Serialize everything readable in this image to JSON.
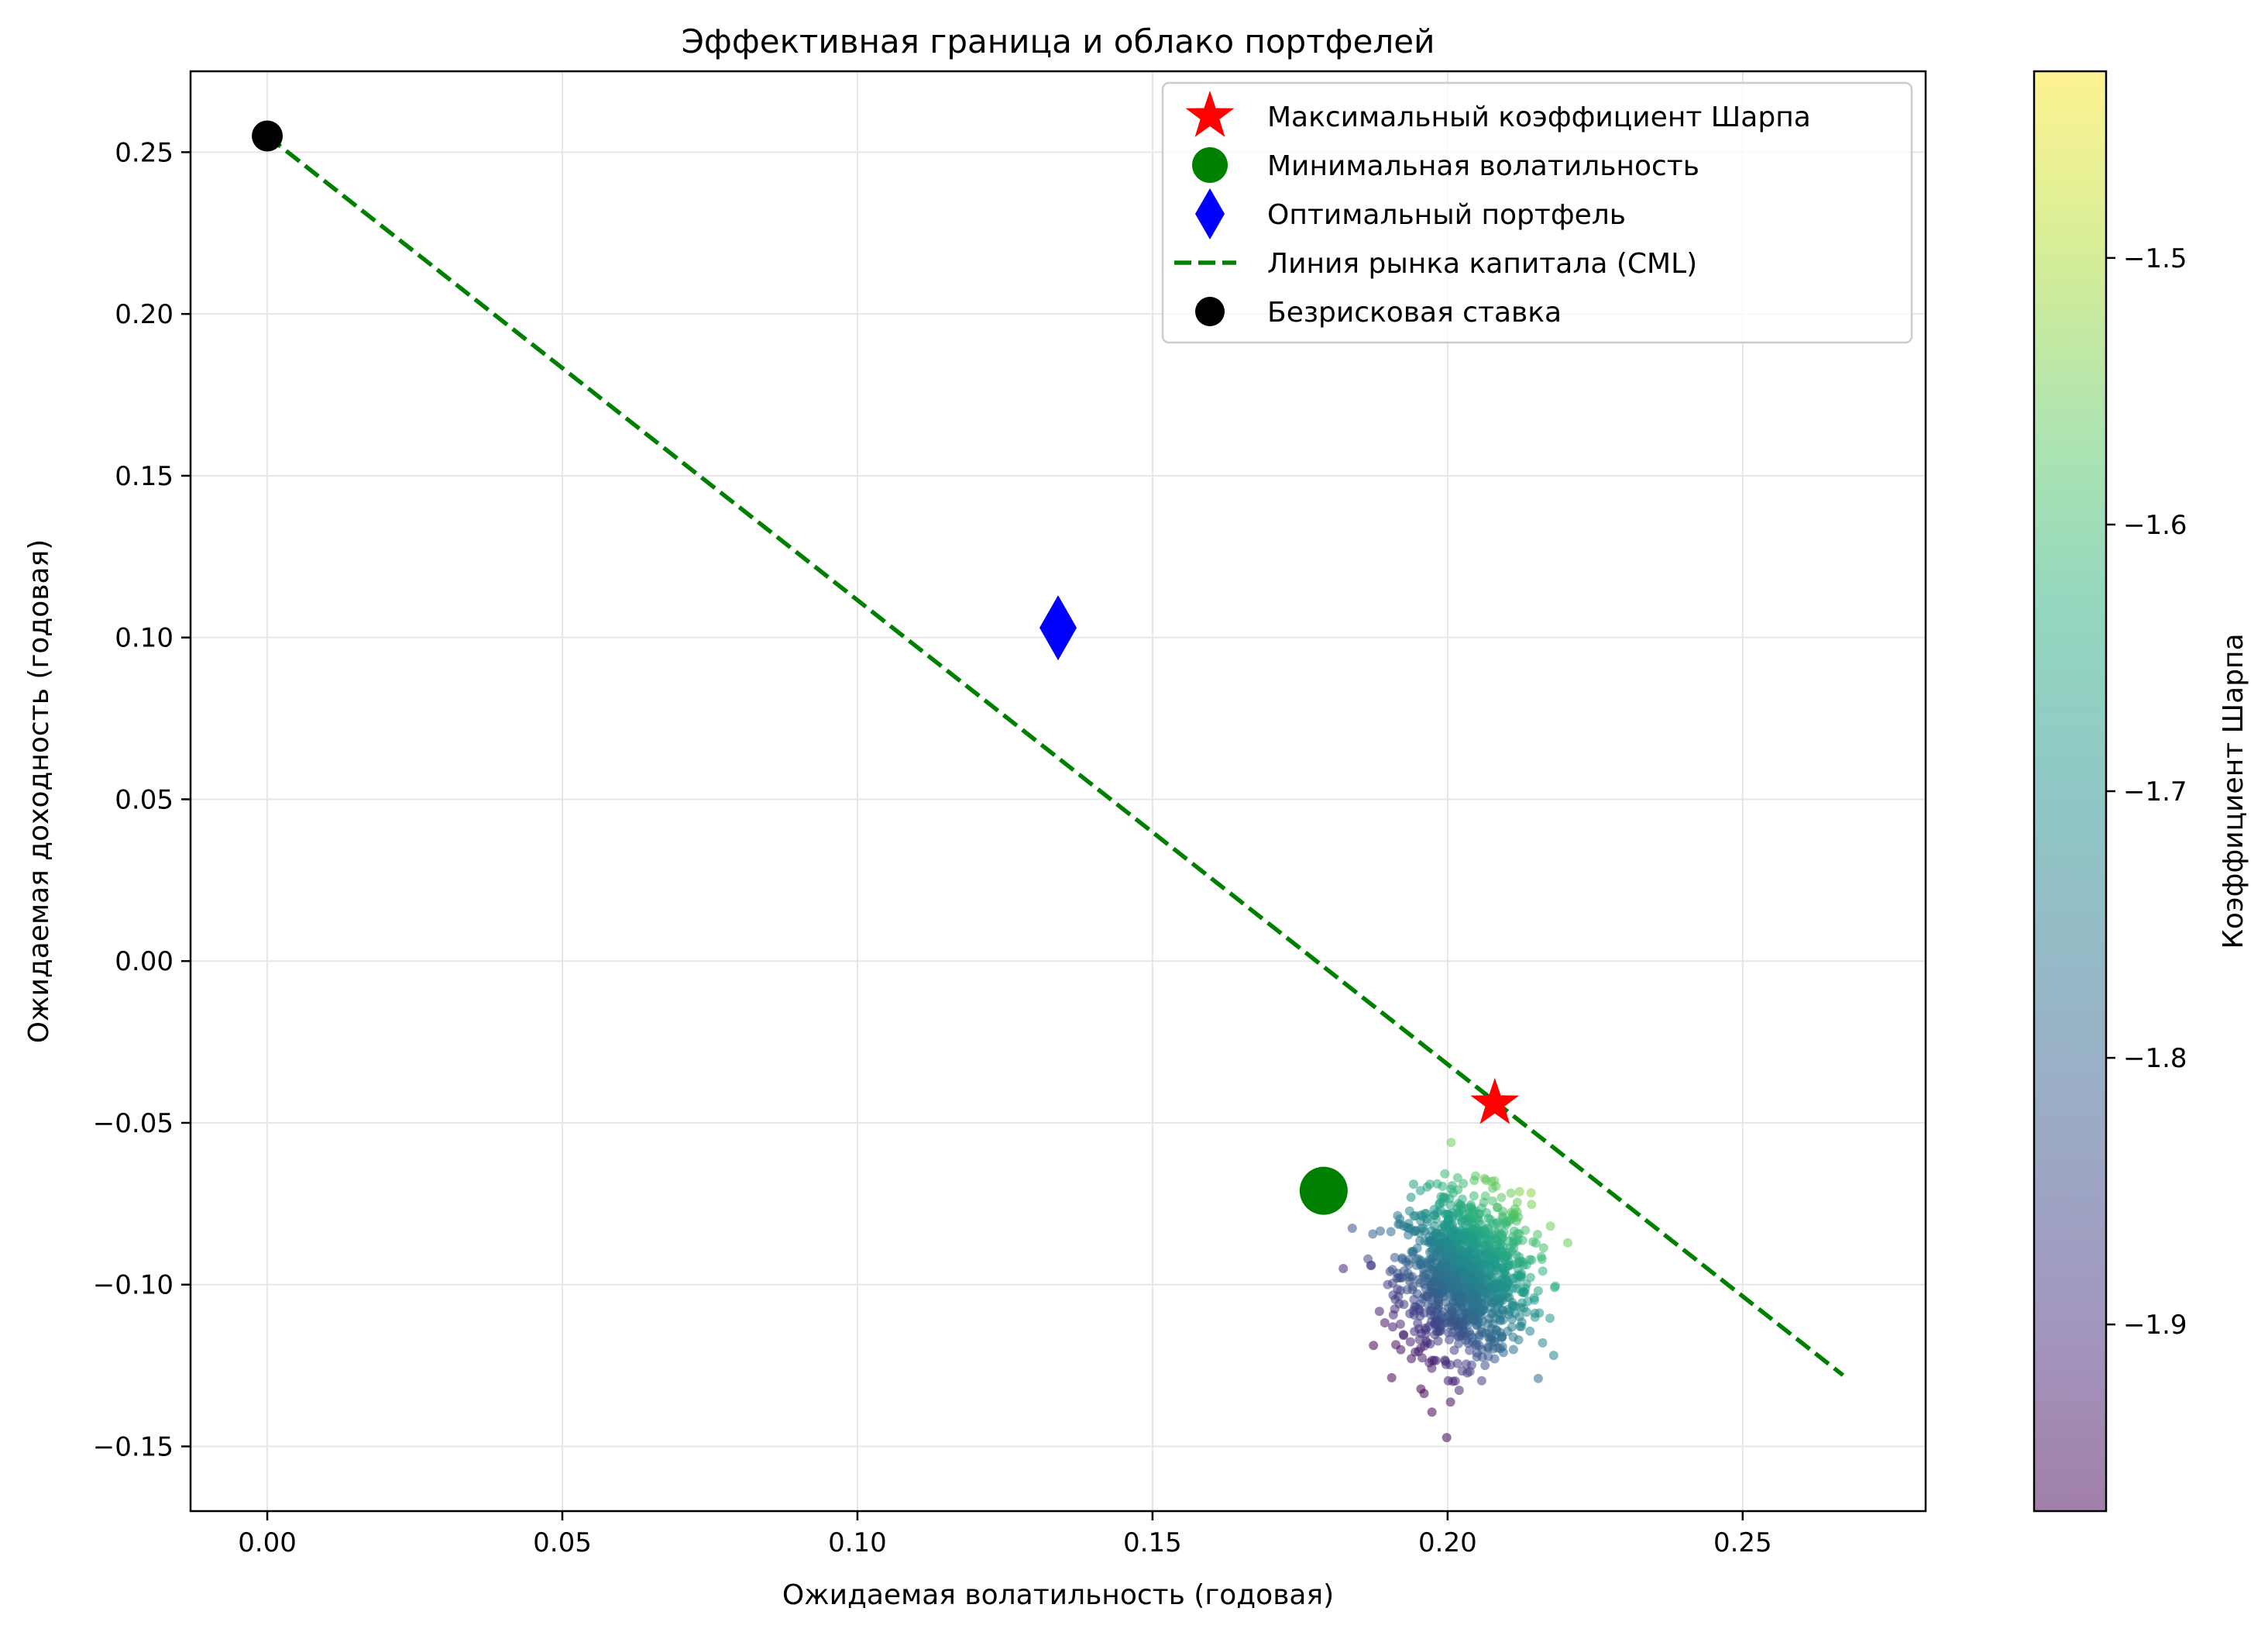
{
  "chart_data": {
    "type": "scatter",
    "title": "Эффективная граница и облако портфелей",
    "xlabel": "Ожидаемая волатильность (годовая)",
    "ylabel": "Ожидаемая доходность (годовая)",
    "xlim": [
      -0.013,
      0.281
    ],
    "ylim": [
      -0.17,
      0.275
    ],
    "xticks": [
      0.0,
      0.05,
      0.1,
      0.15,
      0.2,
      0.25
    ],
    "xtick_labels": [
      "0.00",
      "0.05",
      "0.10",
      "0.15",
      "0.20",
      "0.25"
    ],
    "yticks": [
      0.25,
      0.2,
      0.15,
      0.1,
      0.05,
      0.0,
      -0.05,
      -0.1,
      -0.15
    ],
    "ytick_labels": [
      "0.25",
      "0.20",
      "0.15",
      "0.10",
      "0.05",
      "0.00",
      "−0.05",
      "−0.10",
      "−0.15"
    ],
    "grid": true,
    "legend_position": "top-right",
    "legend": [
      {
        "label": "Максимальный коэффициент Шарпа",
        "marker": "star",
        "color": "#ff0000"
      },
      {
        "label": "Минимальная волатильность",
        "marker": "circle",
        "color": "#008000"
      },
      {
        "label": "Оптимальный портфель",
        "marker": "diamond",
        "color": "#0000ff"
      },
      {
        "label": "Линия рынка капитала (CML)",
        "marker": "dashed-line",
        "color": "#008000"
      },
      {
        "label": "Безрисковая ставка",
        "marker": "circle",
        "color": "#000000"
      }
    ],
    "special_points": {
      "max_sharpe": {
        "x": 0.208,
        "y": -0.044
      },
      "min_volatility": {
        "x": 0.179,
        "y": -0.071
      },
      "optimal": {
        "x": 0.134,
        "y": 0.103
      },
      "risk_free": {
        "x": 0.0,
        "y": 0.255
      }
    },
    "cml": {
      "x": [
        0.0,
        0.267
      ],
      "y": [
        0.255,
        -0.128
      ]
    },
    "cloud": {
      "count": 1200,
      "x_mean": 0.203,
      "x_sd": 0.0055,
      "y_mean": -0.097,
      "y_sd": 0.0125,
      "sharpe_range": [
        -1.97,
        -1.43
      ]
    },
    "colorbar": {
      "label": "Коэффициент Шарпа",
      "range": [
        -1.97,
        -1.43
      ],
      "ticks": [
        -1.5,
        -1.6,
        -1.7,
        -1.8,
        -1.9
      ],
      "tick_labels": [
        "−1.5",
        "−1.6",
        "−1.7",
        "−1.8",
        "−1.9"
      ],
      "colormap": "viridis",
      "alpha": 0.5
    },
    "colors": {
      "cml": "#008000",
      "max_sharpe": "#ff0000",
      "min_volatility": "#008000",
      "optimal": "#0000ff",
      "risk_free": "#000000",
      "grid": "#e6e6e6"
    }
  }
}
